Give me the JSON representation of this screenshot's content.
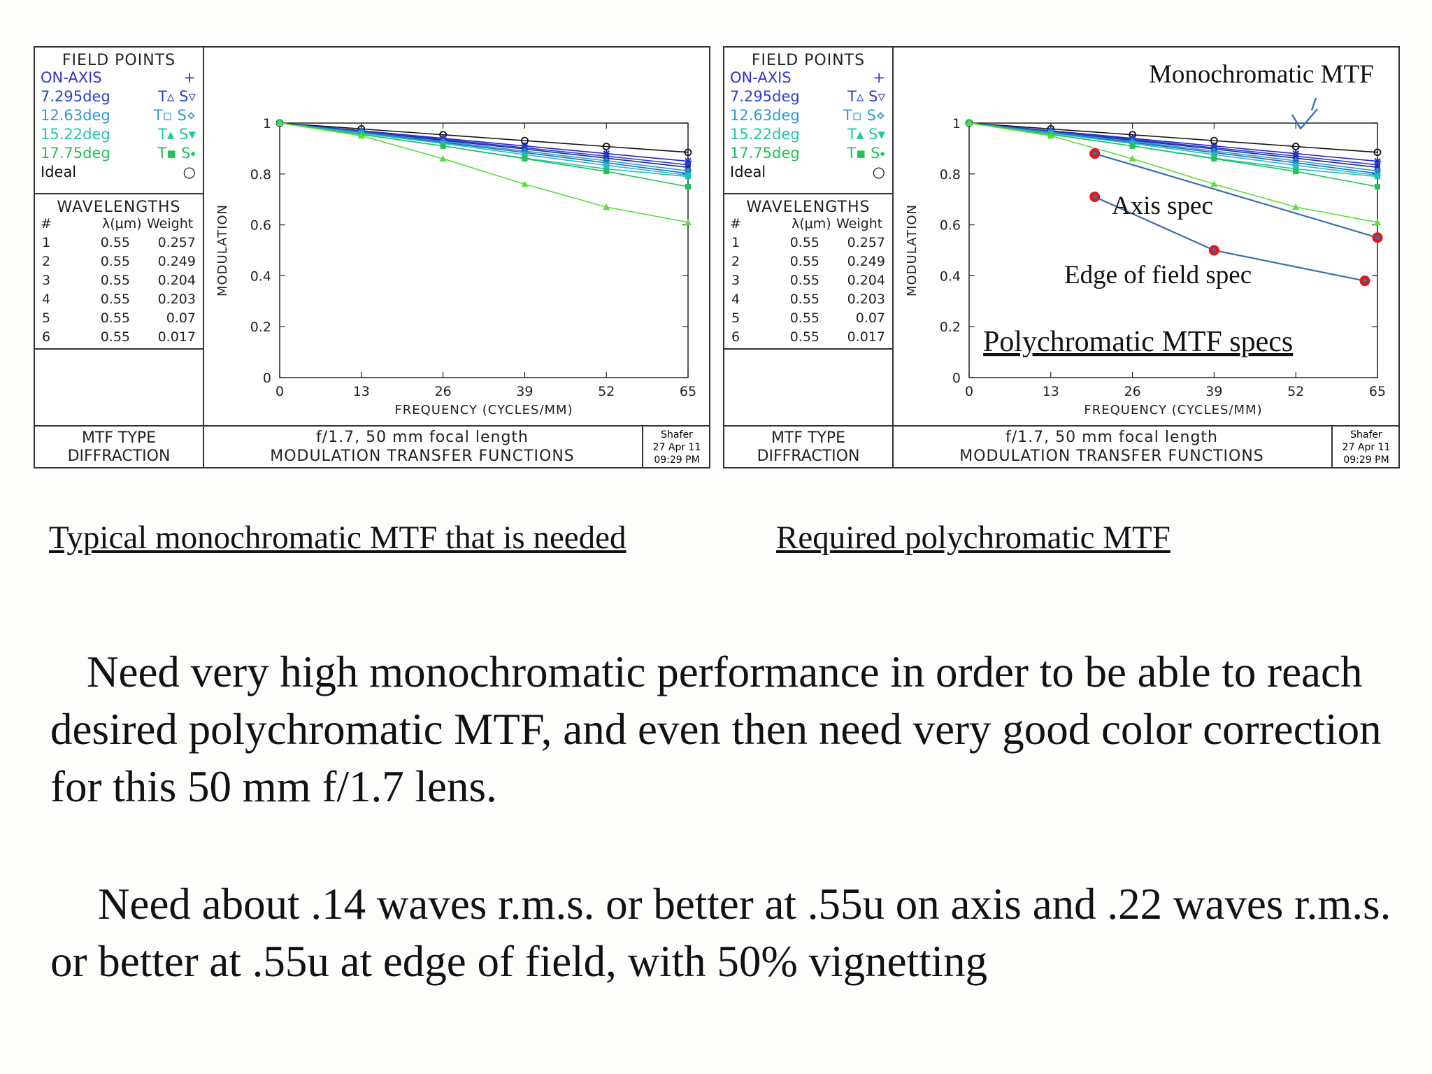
{
  "panels": [
    {
      "field_points": {
        "header": "FIELD POINTS",
        "items": [
          {
            "name": "ON-AXIS",
            "sym": "+",
            "color": "#3333cc"
          },
          {
            "name": "7.295deg",
            "sym": "T▵ S▿",
            "color": "#2d3fd0"
          },
          {
            "name": "12.63deg",
            "sym": "T▫ S⋄",
            "color": "#2b9bd6"
          },
          {
            "name": "15.22deg",
            "sym": "T▴ S▾",
            "color": "#1fc6a8"
          },
          {
            "name": "17.75deg",
            "sym": "T▪ S⬩",
            "color": "#22c25a"
          },
          {
            "name": "Ideal",
            "sym": "○",
            "color": "#111111"
          }
        ]
      },
      "wavelengths": {
        "header": "WAVELENGTHS",
        "col_num": "#",
        "col_lambda": "λ(μm)",
        "col_weight": "Weight",
        "rows": [
          {
            "n": "1",
            "lambda": "0.55",
            "weight": "0.257"
          },
          {
            "n": "2",
            "lambda": "0.55",
            "weight": "0.249"
          },
          {
            "n": "3",
            "lambda": "0.55",
            "weight": "0.204"
          },
          {
            "n": "4",
            "lambda": "0.55",
            "weight": "0.203"
          },
          {
            "n": "5",
            "lambda": "0.55",
            "weight": "0.07"
          },
          {
            "n": "6",
            "lambda": "0.55",
            "weight": "0.017"
          }
        ]
      },
      "mtf_type": {
        "label": "MTF TYPE",
        "value": "DIFFRACTION"
      },
      "title_line1": "f/1.7, 50 mm focal length",
      "title_line2": "MODULATION TRANSFER FUNCTIONS",
      "stamp": {
        "author": "Shafer",
        "date": "27 Apr 11",
        "time": "09:29 PM"
      }
    },
    {
      "field_points": {
        "header": "FIELD POINTS",
        "items": [
          {
            "name": "ON-AXIS",
            "sym": "+",
            "color": "#3333cc"
          },
          {
            "name": "7.295deg",
            "sym": "T▵ S▿",
            "color": "#2d3fd0"
          },
          {
            "name": "12.63deg",
            "sym": "T▫ S⋄",
            "color": "#2b9bd6"
          },
          {
            "name": "15.22deg",
            "sym": "T▴ S▾",
            "color": "#1fc6a8"
          },
          {
            "name": "17.75deg",
            "sym": "T▪ S⬩",
            "color": "#22c25a"
          },
          {
            "name": "Ideal",
            "sym": "○",
            "color": "#111111"
          }
        ]
      },
      "wavelengths": {
        "header": "WAVELENGTHS",
        "col_num": "#",
        "col_lambda": "λ(μm)",
        "col_weight": "Weight",
        "rows": [
          {
            "n": "1",
            "lambda": "0.55",
            "weight": "0.257"
          },
          {
            "n": "2",
            "lambda": "0.55",
            "weight": "0.249"
          },
          {
            "n": "3",
            "lambda": "0.55",
            "weight": "0.204"
          },
          {
            "n": "4",
            "lambda": "0.55",
            "weight": "0.203"
          },
          {
            "n": "5",
            "lambda": "0.55",
            "weight": "0.07"
          },
          {
            "n": "6",
            "lambda": "0.55",
            "weight": "0.017"
          }
        ]
      },
      "mtf_type": {
        "label": "MTF TYPE",
        "value": "DIFFRACTION"
      },
      "title_line1": "f/1.7, 50 mm focal length",
      "title_line2": "MODULATION TRANSFER FUNCTIONS",
      "stamp": {
        "author": "Shafer",
        "date": "27 Apr 11",
        "time": "09:29 PM"
      }
    }
  ],
  "chart_data": [
    {
      "type": "line",
      "xlabel": "FREQUENCY (CYCLES/MM)",
      "ylabel": "MODULATION",
      "xlim": [
        0,
        65
      ],
      "ylim": [
        0,
        1
      ],
      "xticks": [
        0,
        13,
        26,
        39,
        52,
        65
      ],
      "yticks": [
        0,
        0.2,
        0.4,
        0.6,
        0.8,
        1
      ],
      "grid": false,
      "x": [
        0,
        13,
        26,
        39,
        52,
        65
      ],
      "series": [
        {
          "name": "Ideal",
          "color": "#111111",
          "values": [
            1,
            0.977,
            0.954,
            0.931,
            0.908,
            0.885
          ]
        },
        {
          "name": "ON-AXIS",
          "color": "#2424c8",
          "values": [
            1,
            0.97,
            0.94,
            0.91,
            0.88,
            0.85
          ]
        },
        {
          "name": "7.295deg T",
          "color": "#2d3fd0",
          "values": [
            1,
            0.968,
            0.936,
            0.903,
            0.87,
            0.836
          ]
        },
        {
          "name": "7.295deg S",
          "color": "#1a2a8a",
          "values": [
            1,
            0.966,
            0.932,
            0.898,
            0.862,
            0.826
          ]
        },
        {
          "name": "12.63deg T",
          "color": "#2b9bd6",
          "values": [
            1,
            0.964,
            0.928,
            0.89,
            0.852,
            0.812
          ]
        },
        {
          "name": "12.63deg S",
          "color": "#1e6fb8",
          "values": [
            1,
            0.962,
            0.924,
            0.884,
            0.844,
            0.802
          ]
        },
        {
          "name": "15.22deg T",
          "color": "#1fc6a8",
          "values": [
            1,
            0.956,
            0.91,
            0.862,
            0.82,
            0.79
          ]
        },
        {
          "name": "15.22deg S",
          "color": "#2cb7c9",
          "values": [
            1,
            0.96,
            0.92,
            0.876,
            0.834,
            0.795
          ]
        },
        {
          "name": "17.75deg T",
          "color": "#22c25a",
          "values": [
            1,
            0.955,
            0.91,
            0.86,
            0.81,
            0.75
          ]
        },
        {
          "name": "17.75deg S",
          "color": "#5cde3a",
          "values": [
            1,
            0.95,
            0.86,
            0.76,
            0.67,
            0.61
          ]
        }
      ]
    },
    {
      "type": "line",
      "xlabel": "FREQUENCY (CYCLES/MM)",
      "ylabel": "MODULATION",
      "xlim": [
        0,
        65
      ],
      "ylim": [
        0,
        1
      ],
      "xticks": [
        0,
        13,
        26,
        39,
        52,
        65
      ],
      "yticks": [
        0,
        0.2,
        0.4,
        0.6,
        0.8,
        1
      ],
      "grid": false,
      "x": [
        0,
        13,
        26,
        39,
        52,
        65
      ],
      "series": [
        {
          "name": "Ideal",
          "color": "#111111",
          "values": [
            1,
            0.977,
            0.954,
            0.931,
            0.908,
            0.885
          ]
        },
        {
          "name": "ON-AXIS",
          "color": "#2424c8",
          "values": [
            1,
            0.97,
            0.94,
            0.91,
            0.88,
            0.85
          ]
        },
        {
          "name": "7.295deg T",
          "color": "#2d3fd0",
          "values": [
            1,
            0.968,
            0.936,
            0.903,
            0.87,
            0.836
          ]
        },
        {
          "name": "7.295deg S",
          "color": "#1a2a8a",
          "values": [
            1,
            0.966,
            0.932,
            0.898,
            0.862,
            0.826
          ]
        },
        {
          "name": "12.63deg T",
          "color": "#2b9bd6",
          "values": [
            1,
            0.964,
            0.928,
            0.89,
            0.852,
            0.812
          ]
        },
        {
          "name": "12.63deg S",
          "color": "#1e6fb8",
          "values": [
            1,
            0.962,
            0.924,
            0.884,
            0.844,
            0.802
          ]
        },
        {
          "name": "15.22deg T",
          "color": "#1fc6a8",
          "values": [
            1,
            0.956,
            0.91,
            0.862,
            0.82,
            0.79
          ]
        },
        {
          "name": "15.22deg S",
          "color": "#2cb7c9",
          "values": [
            1,
            0.96,
            0.92,
            0.876,
            0.834,
            0.795
          ]
        },
        {
          "name": "17.75deg T",
          "color": "#22c25a",
          "values": [
            1,
            0.955,
            0.91,
            0.86,
            0.81,
            0.75
          ]
        },
        {
          "name": "17.75deg S",
          "color": "#5cde3a",
          "values": [
            1,
            0.95,
            0.86,
            0.76,
            0.67,
            0.61
          ]
        }
      ],
      "spec_lines": [
        {
          "name": "Axis spec",
          "color": "#3a6fae",
          "points": [
            {
              "x": 20,
              "y": 0.88
            },
            {
              "x": 65,
              "y": 0.55
            }
          ]
        },
        {
          "name": "Edge of field spec",
          "color": "#3a6fae",
          "points": [
            {
              "x": 20,
              "y": 0.71
            },
            {
              "x": 39,
              "y": 0.5
            },
            {
              "x": 63,
              "y": 0.38
            }
          ]
        }
      ],
      "spec_marker_color": "#e01818",
      "annotations": {
        "top": "Monochromatic MTF",
        "axis_spec": "Axis spec",
        "edge_spec": "Edge of field spec",
        "poly_specs": "Polychromatic MTF specs",
        "poly_color": "#dd1111",
        "check_color": "#3b6ec4"
      }
    }
  ],
  "captions": {
    "left": "Typical monochromatic MTF that is needed",
    "right": "Required polychromatic MTF"
  },
  "body": {
    "para1": "Need very high monochromatic performance in order to be able to reach desired polychromatic MTF, and even then need very good color correction for this 50 mm f/1.7 lens.",
    "para2": "Need about .14 waves r.m.s. or better at .55u on axis and .22 waves r.m.s. or better at .55u  at edge of field, with 50% vignetting"
  }
}
